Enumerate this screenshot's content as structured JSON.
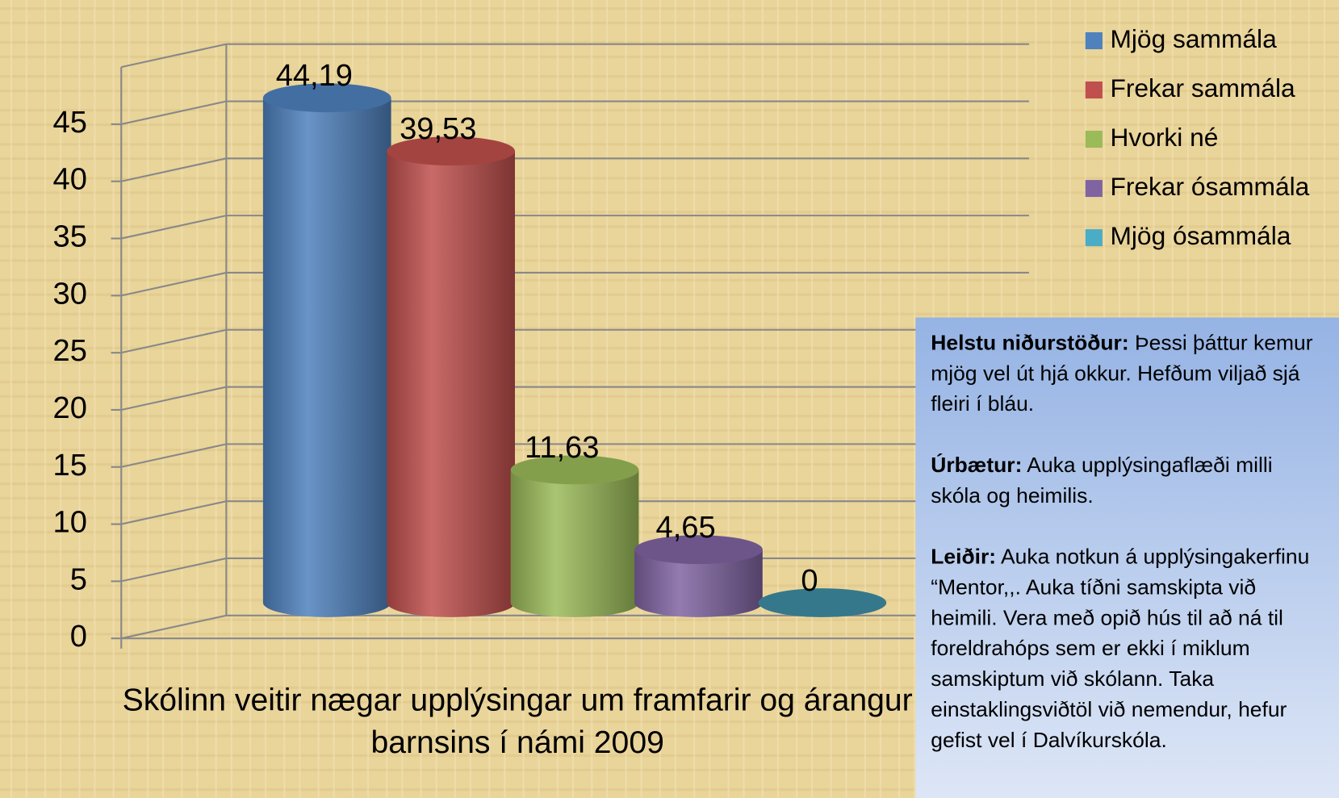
{
  "chart_data": {
    "type": "bar",
    "title": "Skólinn veitir nægar upplýsingar um framfarir og árangur barnsins í námi 2009",
    "series": [
      {
        "name": "Mjög sammála",
        "color": "#4f81bd",
        "values": [
          44.19
        ],
        "value_labels": [
          "44,19"
        ]
      },
      {
        "name": "Frekar sammála",
        "color": "#c0504d",
        "values": [
          39.53
        ],
        "value_labels": [
          "39,53"
        ]
      },
      {
        "name": "Hvorki né",
        "color": "#9bbb59",
        "values": [
          11.63
        ],
        "value_labels": [
          "11,63"
        ]
      },
      {
        "name": "Frekar ósammála",
        "color": "#8064a2",
        "values": [
          4.65
        ],
        "value_labels": [
          "4,65"
        ]
      },
      {
        "name": "Mjög ósammála",
        "color": "#4bacc6",
        "values": [
          0
        ],
        "value_labels": [
          "0"
        ]
      }
    ],
    "ylim": [
      0,
      50
    ],
    "yticks": [
      0,
      5,
      10,
      15,
      20,
      25,
      30,
      35,
      40,
      45
    ],
    "grid": true,
    "legend": "right"
  },
  "note": {
    "sections": [
      {
        "heading": "Helstu niðurstöður:",
        "text": "Þessi þáttur kemur mjög vel út hjá okkur. Hefðum viljað sjá fleiri í bláu."
      },
      {
        "heading": "Úrbætur:",
        "text": "Auka upplýsingaflæði milli skóla og heimilis."
      },
      {
        "heading": "Leiðir:",
        "text": "Auka notkun á upplýsingakerfinu “Mentor,,.  Auka tíðni samskipta við heimili.  Vera með opið hús til að ná til foreldrahóps sem er ekki í miklum samskiptum við skólann.  Taka einstaklingsviðtöl við nemendur, hefur gefist vel í Dalvíkurskóla."
      }
    ]
  }
}
